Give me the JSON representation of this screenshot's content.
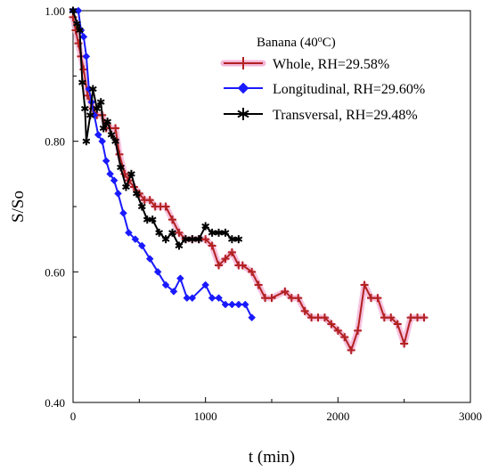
{
  "chart_data": {
    "type": "line",
    "xlabel": "t (min)",
    "ylabel": "S/So",
    "xlim": [
      0,
      3000
    ],
    "ylim": [
      0.4,
      1.0
    ],
    "x_ticks": [
      0,
      1000,
      2000,
      3000
    ],
    "x_tick_labels": [
      "0",
      "1000",
      "2000",
      "3000"
    ],
    "y_ticks": [
      0.4,
      0.6,
      0.8,
      1.0
    ],
    "y_tick_labels": [
      "0.40",
      "0.60",
      "0.80",
      "1.00"
    ],
    "grid": false,
    "legend": {
      "title_base": "Banana (40",
      "title_sup": "o",
      "title_end": "C)",
      "placement": "top-right"
    },
    "series": [
      {
        "name": "Whole, RH=29.58%",
        "color": "#b22222",
        "marker": "plus",
        "x": [
          0,
          20,
          40,
          60,
          80,
          110,
          150,
          180,
          220,
          250,
          280,
          320,
          350,
          390,
          420,
          460,
          500,
          540,
          580,
          620,
          660,
          700,
          750,
          800,
          850,
          900,
          950,
          1000,
          1050,
          1100,
          1150,
          1200,
          1250,
          1280,
          1350,
          1400,
          1450,
          1500,
          1600,
          1650,
          1700,
          1750,
          1800,
          1850,
          1900,
          1950,
          2000,
          2050,
          2100,
          2150,
          2200,
          2250,
          2300,
          2350,
          2400,
          2450,
          2500,
          2550,
          2600,
          2650
        ],
        "y": [
          0.99,
          0.97,
          0.95,
          0.93,
          0.91,
          0.87,
          0.85,
          0.84,
          0.84,
          0.82,
          0.82,
          0.82,
          0.78,
          0.75,
          0.74,
          0.73,
          0.72,
          0.71,
          0.71,
          0.7,
          0.7,
          0.7,
          0.68,
          0.66,
          0.65,
          0.65,
          0.65,
          0.65,
          0.64,
          0.61,
          0.62,
          0.63,
          0.61,
          0.61,
          0.6,
          0.58,
          0.56,
          0.56,
          0.57,
          0.56,
          0.56,
          0.54,
          0.53,
          0.53,
          0.53,
          0.52,
          0.51,
          0.5,
          0.48,
          0.51,
          0.58,
          0.56,
          0.56,
          0.53,
          0.53,
          0.52,
          0.49,
          0.53,
          0.53,
          0.53
        ]
      },
      {
        "name": "Longitudinal, RH=29.60%",
        "color": "#1a1aff",
        "marker": "diamond",
        "x": [
          0,
          40,
          60,
          80,
          100,
          120,
          140,
          160,
          190,
          220,
          250,
          280,
          310,
          340,
          380,
          420,
          470,
          520,
          580,
          640,
          700,
          760,
          810,
          860,
          900,
          1000,
          1050,
          1100,
          1150,
          1200,
          1250,
          1300,
          1350
        ],
        "y": [
          1.0,
          1.0,
          0.97,
          0.96,
          0.93,
          0.88,
          0.86,
          0.84,
          0.81,
          0.8,
          0.77,
          0.75,
          0.74,
          0.72,
          0.69,
          0.66,
          0.65,
          0.64,
          0.62,
          0.6,
          0.58,
          0.57,
          0.59,
          0.56,
          0.56,
          0.58,
          0.56,
          0.56,
          0.55,
          0.55,
          0.55,
          0.55,
          0.53
        ]
      },
      {
        "name": "Transversal, RH=29.48%",
        "color": "#000000",
        "marker": "star",
        "x": [
          0,
          30,
          50,
          70,
          90,
          100,
          130,
          150,
          180,
          210,
          230,
          260,
          290,
          320,
          360,
          400,
          440,
          480,
          520,
          560,
          600,
          650,
          700,
          750,
          800,
          850,
          900,
          950,
          1000,
          1050,
          1100,
          1150,
          1200,
          1250
        ],
        "y": [
          1.0,
          0.98,
          0.97,
          0.89,
          0.85,
          0.8,
          0.84,
          0.88,
          0.85,
          0.86,
          0.82,
          0.83,
          0.81,
          0.8,
          0.76,
          0.73,
          0.75,
          0.72,
          0.7,
          0.68,
          0.68,
          0.66,
          0.65,
          0.66,
          0.64,
          0.65,
          0.65,
          0.65,
          0.67,
          0.66,
          0.66,
          0.66,
          0.65,
          0.65
        ]
      }
    ]
  }
}
